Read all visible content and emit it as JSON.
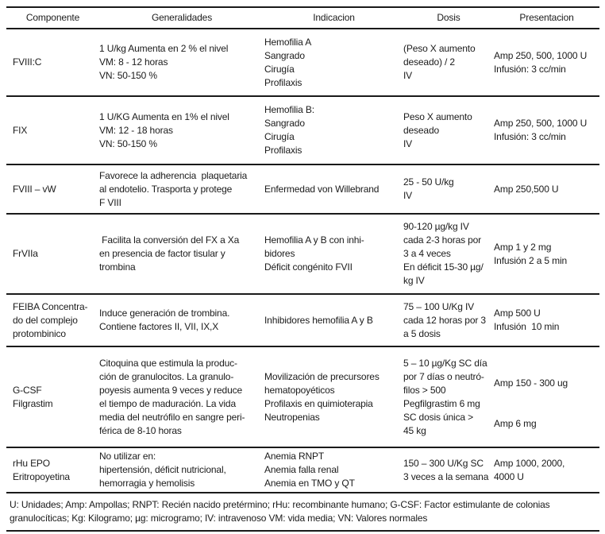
{
  "colors": {
    "background": "#ffffff",
    "text": "#1b1b1b",
    "rule_line": "#1a1a1a"
  },
  "table": {
    "headers": {
      "componente": "Componente",
      "generalidades": "Generalidades",
      "indicacion": "Indicacion",
      "dosis": "Dosis",
      "presentacion": "Presentacion"
    },
    "rows": [
      {
        "componente": "FVIII:C",
        "generalidades": [
          "1 U/kg Aumenta en 2 % el nivel",
          "VM: 8 - 12 horas",
          "VN: 50-150 %"
        ],
        "indicacion": [
          "Hemofilia A",
          "Sangrado",
          "Cirugía",
          "Profilaxis"
        ],
        "dosis": [
          "(Peso X aumento",
          "deseado) / 2",
          "IV"
        ],
        "presentacion": [
          "Amp 250, 500, 1000 U",
          "Infusión: 3 cc/min"
        ]
      },
      {
        "componente": "FIX",
        "generalidades": [
          "1 U/KG Aumenta en 1% el nivel",
          "VM: 12 - 18 horas",
          "VN: 50-150 %"
        ],
        "indicacion": [
          "Hemofilia B:",
          "Sangrado",
          "Cirugía",
          "Profilaxis"
        ],
        "dosis": [
          "Peso X aumento",
          "deseado",
          "IV"
        ],
        "presentacion": [
          "Amp 250, 500, 1000 U",
          "Infusión: 3 cc/min"
        ]
      },
      {
        "componente": "FVIII – vW",
        "generalidades": [
          "Favorece la adherencia  plaquetaria",
          "al endotelio. Trasporta y protege",
          "F VIII"
        ],
        "indicacion": [
          "Enfermedad von Willebrand"
        ],
        "dosis": [
          "25 - 50 U/kg",
          "IV"
        ],
        "presentacion": [
          "Amp 250,500 U"
        ]
      },
      {
        "componente": "FrVIIa",
        "generalidades": [
          " Facilita la conversión del FX a Xa",
          "en presencia de factor tisular y",
          "trombina"
        ],
        "indicacion": [
          "Hemofilia A y B con inhi-",
          "bidores",
          "Déficit congénito FVII"
        ],
        "dosis": [
          "90-120 µg/kg IV",
          "cada 2-3 horas por",
          "3 a 4 veces",
          "En déficit 15-30 µg/",
          "kg IV"
        ],
        "presentacion": [
          "Amp 1 y 2 mg",
          "Infusión 2 a 5 min"
        ]
      },
      {
        "componente": [
          "FEIBA Concentra-",
          "do del complejo",
          "protombinico"
        ],
        "generalidades": [
          "Induce generación de trombina.",
          "Contiene factores II, VII, IX,X"
        ],
        "indicacion": [
          "Inhibidores hemofilia A y B"
        ],
        "dosis": [
          "75 – 100 U/Kg IV",
          "cada 12 horas por 3",
          "a 5 dosis"
        ],
        "presentacion": [
          "Amp 500 U",
          "Infusión  10 min"
        ]
      },
      {
        "componente": [
          "G-CSF",
          "Filgrastim"
        ],
        "generalidades": [
          "Citoquina que estimula la produc-",
          "ción de granulocitos. La granulo-",
          "poyesis aumenta 9 veces y reduce",
          "el tiempo de maduración. La vida",
          "media del neutrófilo en sangre peri-",
          "férica de 8-10 horas"
        ],
        "indicacion": [
          "Movilización de precursores",
          "hematopoyéticos",
          "Profilaxis en quimioterapia",
          "Neutropenias"
        ],
        "dosis": [
          "5 – 10 µg/Kg SC día",
          "por 7 días o neutró-",
          "filos > 500",
          "Pegfilgrastim 6 mg",
          "SC dosis única >",
          "45 kg"
        ],
        "presentacion": [
          "",
          "Amp 150 - 300 ug",
          "",
          "",
          "Amp 6 mg",
          ""
        ]
      },
      {
        "componente": [
          "rHu EPO",
          "Eritropoyetina"
        ],
        "generalidades": [
          "No utilizar en:",
          "hipertensión, déficit nutricional,",
          "hemorragia y hemolisis"
        ],
        "indicacion": [
          "Anemia RNPT",
          "Anemia falla renal",
          "Anemia en TMO y QT"
        ],
        "dosis": [
          "150 – 300 U/Kg SC",
          "3 veces a la semana"
        ],
        "presentacion": [
          "Amp 1000, 2000,",
          "4000 U"
        ]
      }
    ],
    "footnote": "U: Unidades; Amp: Ampollas; RNPT: Recién nacido pretérmino; rHu: recombinante humano; G-CSF: Factor estimulante de colonias granulocíticas; Kg: Kilogramo; µg: microgramo; IV: intravenoso VM: vida media; VN: Valores normales"
  }
}
